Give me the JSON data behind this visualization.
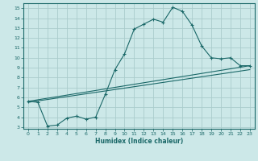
{
  "xlabel": "Humidex (Indice chaleur)",
  "bg_color": "#cce8e8",
  "grid_color": "#aacccc",
  "line_color": "#1a6868",
  "xlim": [
    -0.5,
    23.5
  ],
  "ylim": [
    2.8,
    15.5
  ],
  "xticks": [
    0,
    1,
    2,
    3,
    4,
    5,
    6,
    7,
    8,
    9,
    10,
    11,
    12,
    13,
    14,
    15,
    16,
    17,
    18,
    19,
    20,
    21,
    22,
    23
  ],
  "yticks": [
    3,
    4,
    5,
    6,
    7,
    8,
    9,
    10,
    11,
    12,
    13,
    14,
    15
  ],
  "line1_x": [
    0,
    1,
    2,
    3,
    4,
    5,
    6,
    7,
    8,
    9,
    10,
    11,
    12,
    13,
    14,
    15,
    16,
    17,
    18,
    19,
    20,
    21,
    22,
    23
  ],
  "line1_y": [
    5.6,
    5.5,
    3.1,
    3.2,
    3.9,
    4.1,
    3.8,
    4.0,
    6.3,
    8.8,
    10.4,
    12.9,
    13.4,
    13.9,
    13.6,
    15.1,
    14.7,
    13.3,
    11.2,
    10.0,
    9.9,
    10.0,
    9.2,
    9.2
  ],
  "line2_x": [
    0,
    23
  ],
  "line2_y": [
    5.6,
    9.2
  ],
  "line3_x": [
    0,
    23
  ],
  "line3_y": [
    5.5,
    8.8
  ]
}
